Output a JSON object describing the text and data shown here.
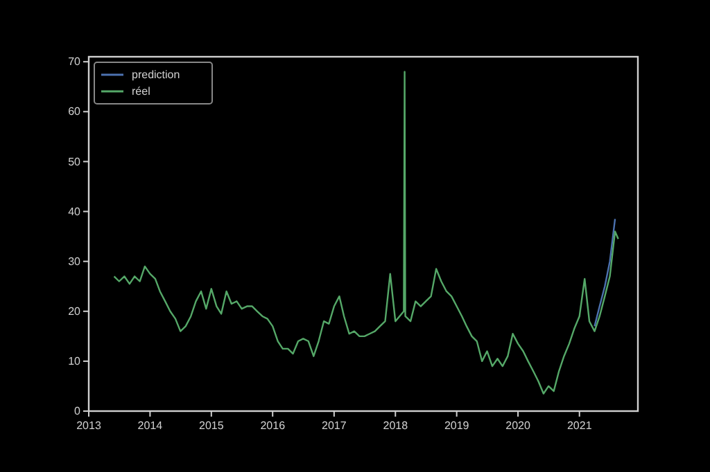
{
  "chart_data": {
    "type": "line",
    "xlim": [
      "2013-01-01",
      "2021-12-15"
    ],
    "xticks": [
      {
        "value": "2013-01-01",
        "label": "2013"
      },
      {
        "value": "2014-01-01",
        "label": "2014"
      },
      {
        "value": "2015-01-01",
        "label": "2015"
      },
      {
        "value": "2016-01-01",
        "label": "2016"
      },
      {
        "value": "2017-01-01",
        "label": "2017"
      },
      {
        "value": "2018-01-01",
        "label": "2018"
      },
      {
        "value": "2019-01-01",
        "label": "2019"
      },
      {
        "value": "2020-01-01",
        "label": "2020"
      },
      {
        "value": "2021-01-01",
        "label": "2021"
      }
    ],
    "ylim": [
      0,
      71
    ],
    "yticks": [
      0,
      10,
      20,
      30,
      40,
      50,
      60,
      70
    ],
    "grid": false,
    "legend": "top left",
    "marker": "none",
    "line_style": "solid",
    "series": [
      {
        "name": "prediction",
        "color": "#4c72b0",
        "x": [
          "2021-04",
          "2021-05",
          "2021-06",
          "2021-07",
          "2021-08"
        ],
        "values": [
          17,
          21,
          25,
          30,
          38.5
        ]
      },
      {
        "name": "réel",
        "color": "#55a868",
        "x": [
          "2013-06",
          "2013-07",
          "2013-08",
          "2013-09",
          "2013-10",
          "2013-11",
          "2013-12",
          "2014-01",
          "2014-02",
          "2014-03",
          "2014-04",
          "2014-05",
          "2014-06",
          "2014-07",
          "2014-08",
          "2014-09",
          "2014-10",
          "2014-11",
          "2014-12",
          "2015-01",
          "2015-02",
          "2015-03",
          "2015-04",
          "2015-05",
          "2015-06",
          "2015-07",
          "2015-08",
          "2015-09",
          "2015-10",
          "2015-11",
          "2015-12",
          "2016-01",
          "2016-02",
          "2016-03",
          "2016-04",
          "2016-05",
          "2016-06",
          "2016-07",
          "2016-08",
          "2016-09",
          "2016-10",
          "2016-11",
          "2016-12",
          "2017-01",
          "2017-02",
          "2017-03",
          "2017-04",
          "2017-05",
          "2017-06",
          "2017-07",
          "2017-08",
          "2017-09",
          "2017-10",
          "2017-11",
          "2017-12",
          "2018-01",
          "2018-02-20",
          "2018-02-25",
          "2018-03-01",
          "2018-04",
          "2018-05",
          "2018-06",
          "2018-07",
          "2018-08",
          "2018-09",
          "2018-10",
          "2018-11",
          "2018-12",
          "2019-01",
          "2019-02",
          "2019-03",
          "2019-04",
          "2019-05",
          "2019-06",
          "2019-07",
          "2019-08",
          "2019-09",
          "2019-10",
          "2019-11",
          "2019-12",
          "2020-01",
          "2020-02",
          "2020-03",
          "2020-04",
          "2020-05",
          "2020-06",
          "2020-07",
          "2020-08",
          "2020-09",
          "2020-10",
          "2020-11",
          "2020-12",
          "2021-01",
          "2021-02",
          "2021-03",
          "2021-04",
          "2021-05",
          "2021-06",
          "2021-07",
          "2021-08",
          "2021-08-20"
        ],
        "values": [
          27,
          26,
          27,
          25.5,
          27,
          26,
          29,
          27.5,
          26.5,
          24,
          22,
          20,
          18.5,
          16,
          17,
          19,
          22,
          24,
          20.5,
          24.5,
          21,
          19.5,
          24,
          21.5,
          22,
          20.5,
          21,
          21,
          20,
          19,
          18.5,
          17,
          14,
          12.5,
          12.5,
          11.5,
          14,
          14.5,
          14,
          11,
          14,
          18,
          17.5,
          21,
          23,
          19,
          15.5,
          16,
          15,
          15,
          15.5,
          16,
          17,
          18,
          27.5,
          18,
          20,
          68,
          19,
          18,
          22,
          21,
          22,
          23,
          28.5,
          26,
          24,
          23,
          21,
          19,
          17,
          15,
          14,
          10,
          12,
          9,
          10.5,
          9,
          11,
          15.5,
          13.5,
          12,
          10,
          8,
          6,
          3.5,
          5,
          4,
          8,
          11,
          13.5,
          16.5,
          19,
          26.5,
          18,
          16,
          19,
          23,
          27,
          36,
          34.5
        ]
      }
    ]
  }
}
